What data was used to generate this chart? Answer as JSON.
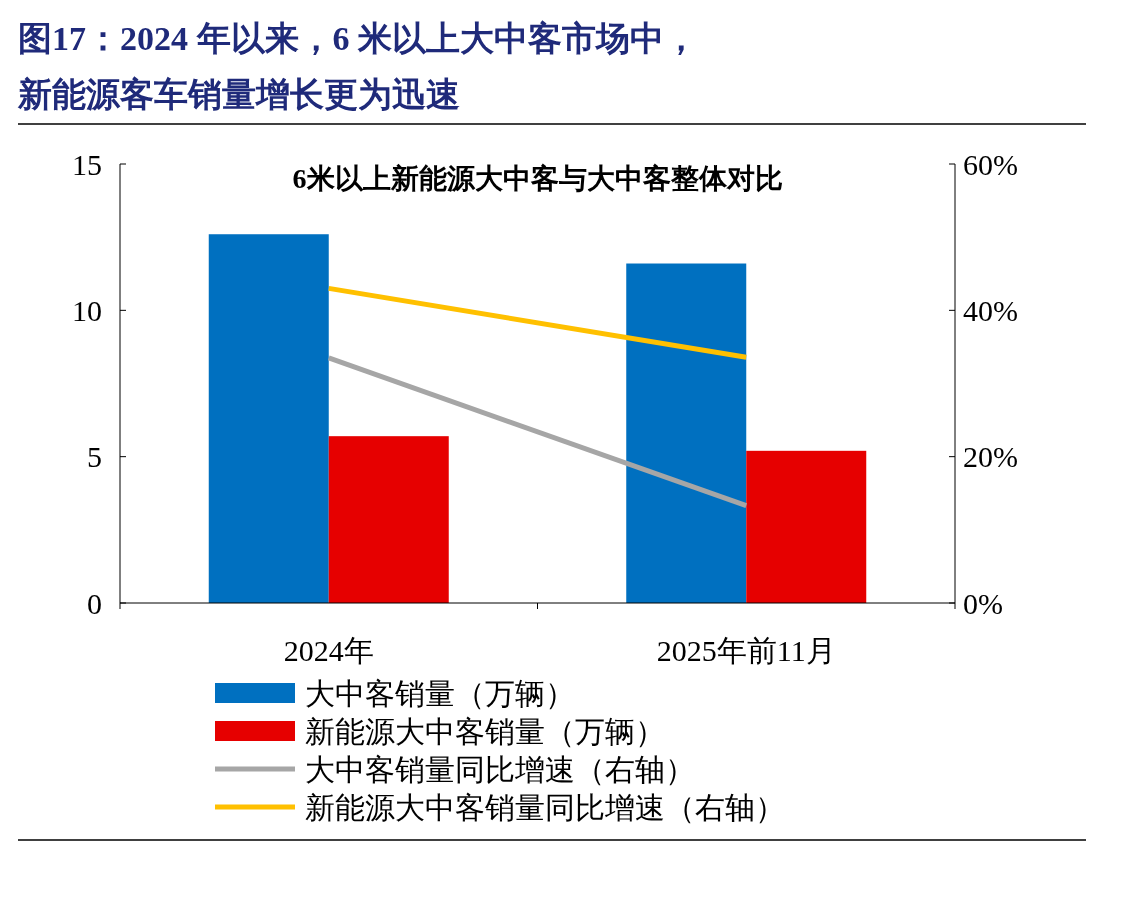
{
  "chart_data": {
    "type": "bar",
    "title": "图17：2024 年以来，6 米以上大中客市场中，新能源客车销量增长更为迅速",
    "subtitle": "6米以上新能源大中客与大中客整体对比",
    "categories": [
      "2024年",
      "2025年前11月"
    ],
    "series": [
      {
        "name": "大中客销量（万辆）",
        "color": "#0070c0",
        "values": [
          12.6,
          11.6
        ]
      },
      {
        "name": "新能源大中客销量（万辆）",
        "color": "#e60000",
        "values": [
          5.7,
          5.2
        ]
      },
      {
        "name": "大中客销量同比增速（右轴）",
        "type": "line",
        "axis": "y2",
        "color": "#a6a6a6",
        "values": [
          33.5,
          13.3
        ]
      },
      {
        "name": "新能源大中客销量同比增速（右轴）",
        "type": "line",
        "axis": "y2",
        "color": "#ffc000",
        "values": [
          43.0,
          33.6
        ]
      }
    ],
    "ylim": [
      0,
      15
    ],
    "yticks": [
      0,
      5,
      10,
      15
    ],
    "y2lim": [
      0,
      60
    ],
    "y2ticks": [
      {
        "value": 0,
        "label": "0%"
      },
      {
        "value": 20,
        "label": "20%"
      },
      {
        "value": 40,
        "label": "40%"
      },
      {
        "value": 60,
        "label": "60%"
      }
    ],
    "legend": "bottom",
    "grid": false
  }
}
